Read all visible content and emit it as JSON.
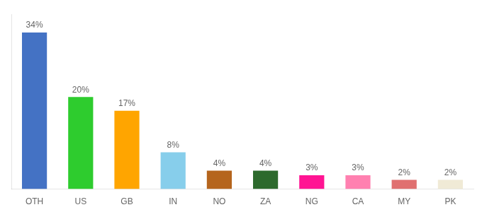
{
  "chart_data": {
    "type": "bar",
    "categories": [
      "OTH",
      "US",
      "GB",
      "IN",
      "NO",
      "ZA",
      "NG",
      "CA",
      "MY",
      "PK"
    ],
    "values": [
      34,
      20,
      17,
      8,
      4,
      4,
      3,
      3,
      2,
      2
    ],
    "value_labels": [
      "34%",
      "20%",
      "17%",
      "8%",
      "4%",
      "4%",
      "3%",
      "3%",
      "2%",
      "2%"
    ],
    "colors": [
      "#4472c4",
      "#2ecc2e",
      "#ffa500",
      "#87ceeb",
      "#b5651d",
      "#2d6a2d",
      "#ff1493",
      "#ff80b0",
      "#e07070",
      "#f0ead6"
    ],
    "ylim": [
      0,
      38
    ],
    "data_labels": true,
    "tick_labels": "x",
    "grid": false
  }
}
